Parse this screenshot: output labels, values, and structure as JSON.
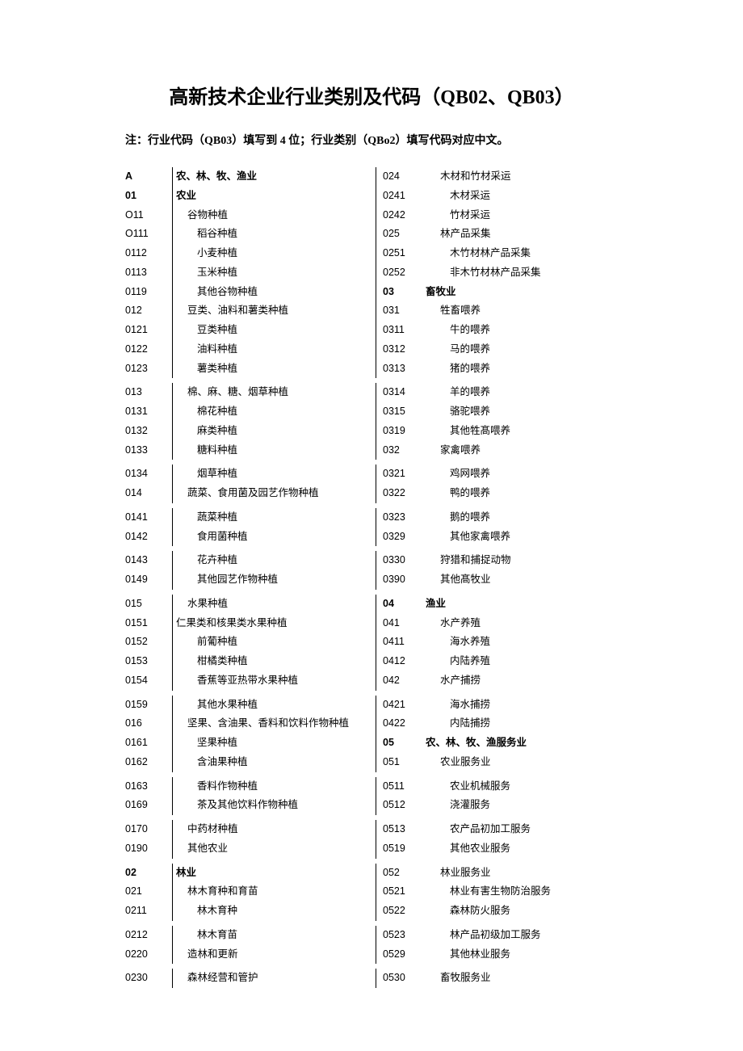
{
  "title": "高新技术企业行业类别及代码（QB02、QB03）",
  "note": "注：行业代码（QB03）填写到 4 位；行业类别（QBo2）填写代码对应中文。",
  "left_column": [
    {
      "code": "A",
      "label": "农、林、牧、渔业",
      "indent": 0,
      "bold": true
    },
    {
      "code": "01",
      "label": "农业",
      "indent": 0,
      "bold": true
    },
    {
      "code": "O11",
      "label": "谷物种植",
      "indent": 1
    },
    {
      "code": "O111",
      "label": "稻谷种植",
      "indent": 2
    },
    {
      "code": "0112",
      "label": "小麦种植",
      "indent": 2
    },
    {
      "code": "0113",
      "label": "玉米种植",
      "indent": 2
    },
    {
      "code": "0119",
      "label": "其他谷物种植",
      "indent": 2
    },
    {
      "code": "012",
      "label": "豆类、油料和薯类种植",
      "indent": 1
    },
    {
      "code": "0121",
      "label": "豆类种植",
      "indent": 2
    },
    {
      "code": "0122",
      "label": "油料种植",
      "indent": 2
    },
    {
      "code": "0123",
      "label": "薯类种植",
      "indent": 2
    },
    {
      "spacer": true
    },
    {
      "code": "013",
      "label": "棉、麻、糖、烟草种植",
      "indent": 1
    },
    {
      "code": "0131",
      "label": "棉花种植",
      "indent": 2
    },
    {
      "code": "0132",
      "label": "麻类种植",
      "indent": 2
    },
    {
      "code": "0133",
      "label": "糖料种植",
      "indent": 2
    },
    {
      "spacer": true
    },
    {
      "code": "0134",
      "label": "烟草种植",
      "indent": 2
    },
    {
      "code": "014",
      "label": "蔬菜、食用菌及园艺作物种植",
      "indent": 1
    },
    {
      "spacer": true
    },
    {
      "code": "0141",
      "label": "蔬菜种植",
      "indent": 2
    },
    {
      "code": "0142",
      "label": "食用菌种植",
      "indent": 2
    },
    {
      "spacer": true
    },
    {
      "code": "0143",
      "label": "花卉种植",
      "indent": 2
    },
    {
      "code": "0149",
      "label": "其他园艺作物种植",
      "indent": 2
    },
    {
      "spacer": true
    },
    {
      "code": "015",
      "label": "水果种植",
      "indent": 1
    },
    {
      "code": "0151",
      "label": "仁果类和核果类水果种植",
      "indent": 3
    },
    {
      "code": "0152",
      "label": "前葡种植",
      "indent": 2
    },
    {
      "code": "0153",
      "label": "柑橘类种植",
      "indent": 2
    },
    {
      "code": "0154",
      "label": "香蕉等亚热带水果种植",
      "indent": 2
    },
    {
      "spacer": true
    },
    {
      "code": "0159",
      "label": "其他水果种植",
      "indent": 2
    },
    {
      "code": "016",
      "label": "坚果、含油果、香料和饮料作物种植",
      "indent": 1
    },
    {
      "code": "0161",
      "label": "坚果种植",
      "indent": 2
    },
    {
      "code": "0162",
      "label": "含油果种植",
      "indent": 2
    },
    {
      "spacer": true
    },
    {
      "code": "0163",
      "label": "香料作物种植",
      "indent": 2
    },
    {
      "code": "0169",
      "label": "茶及其他饮料作物种植",
      "indent": 2
    },
    {
      "spacer": true
    },
    {
      "code": "0170",
      "label": "中药材种植",
      "indent": 1
    },
    {
      "code": "0190",
      "label": "其他农业",
      "indent": 1
    },
    {
      "spacer": true
    },
    {
      "code": "02",
      "label": "林业",
      "indent": 0,
      "bold": true
    },
    {
      "code": "021",
      "label": "林木育种和育苗",
      "indent": 1
    },
    {
      "code": "0211",
      "label": "林木育种",
      "indent": 2
    },
    {
      "spacer": true
    },
    {
      "code": "0212",
      "label": "林木育苗",
      "indent": 2
    },
    {
      "code": "0220",
      "label": "造林和更新",
      "indent": 1
    },
    {
      "spacer": true
    },
    {
      "code": "0230",
      "label": "森林经营和管护",
      "indent": 1
    }
  ],
  "right_column": [
    {
      "code": "024",
      "label": "木材和竹材采运",
      "indent": 1
    },
    {
      "code": "0241",
      "label": "木材采运",
      "indent": 2
    },
    {
      "code": "0242",
      "label": "竹材采运",
      "indent": 2
    },
    {
      "code": "025",
      "label": "林产品采集",
      "indent": 1
    },
    {
      "code": "0251",
      "label": "木竹材林产品采集",
      "indent": 2
    },
    {
      "code": "0252",
      "label": "非木竹材林产品采集",
      "indent": 2
    },
    {
      "code": "03",
      "label": "畜牧业",
      "indent": 0,
      "bold": true
    },
    {
      "code": "031",
      "label": "牲畜喂养",
      "indent": 1
    },
    {
      "code": "0311",
      "label": "牛的喂养",
      "indent": 2
    },
    {
      "code": "0312",
      "label": "马的喂养",
      "indent": 2
    },
    {
      "code": "0313",
      "label": "猪的喂养",
      "indent": 2
    },
    {
      "spacer": true
    },
    {
      "code": "0314",
      "label": "羊的喂养",
      "indent": 2
    },
    {
      "code": "0315",
      "label": "骆驼喂养",
      "indent": 2
    },
    {
      "code": "0319",
      "label": "其他牲髙喂养",
      "indent": 2
    },
    {
      "code": "032",
      "label": "家禽喂养",
      "indent": 1
    },
    {
      "spacer": true
    },
    {
      "code": "0321",
      "label": "鸡网喂养",
      "indent": 2
    },
    {
      "code": "0322",
      "label": "鸭的喂养",
      "indent": 2
    },
    {
      "spacer": true
    },
    {
      "code": "0323",
      "label": "鹅的喂养",
      "indent": 2
    },
    {
      "code": "0329",
      "label": "其他家禽喂养",
      "indent": 2
    },
    {
      "spacer": true
    },
    {
      "code": "0330",
      "label": "狩猎和捕捉动物",
      "indent": 1
    },
    {
      "code": "0390",
      "label": "其他髙牧业",
      "indent": 1
    },
    {
      "spacer": true
    },
    {
      "code": "04",
      "label": "渔业",
      "indent": 0,
      "bold": true
    },
    {
      "code": "041",
      "label": "水产养殖",
      "indent": 1
    },
    {
      "code": "0411",
      "label": "海水养殖",
      "indent": 2
    },
    {
      "code": "0412",
      "label": "内陆养殖",
      "indent": 2
    },
    {
      "code": "042",
      "label": "水产捕捞",
      "indent": 1
    },
    {
      "spacer": true
    },
    {
      "code": "0421",
      "label": "海水捕捞",
      "indent": 2
    },
    {
      "code": "0422",
      "label": "内陆捕捞",
      "indent": 2
    },
    {
      "code": "05",
      "label": "农、林、牧、渔服务业",
      "indent": 0,
      "bold": true
    },
    {
      "code": "051",
      "label": "农业服务业",
      "indent": 1
    },
    {
      "spacer": true
    },
    {
      "code": "0511",
      "label": "农业机械服务",
      "indent": 2
    },
    {
      "code": "0512",
      "label": "浇灌服务",
      "indent": 2
    },
    {
      "spacer": true
    },
    {
      "code": "0513",
      "label": "农产品初加工服务",
      "indent": 2
    },
    {
      "code": "0519",
      "label": "其他农业服务",
      "indent": 2
    },
    {
      "spacer": true
    },
    {
      "code": "052",
      "label": "林业服务业",
      "indent": 1
    },
    {
      "code": "0521",
      "label": "林业有害生物防治服务",
      "indent": 2
    },
    {
      "code": "0522",
      "label": "森林防火服务",
      "indent": 2
    },
    {
      "spacer": true
    },
    {
      "code": "0523",
      "label": "林产品初级加工服务",
      "indent": 2
    },
    {
      "code": "0529",
      "label": "其他林业服务",
      "indent": 2
    },
    {
      "spacer": true
    },
    {
      "code": "0530",
      "label": "畜牧服务业",
      "indent": 1
    }
  ]
}
